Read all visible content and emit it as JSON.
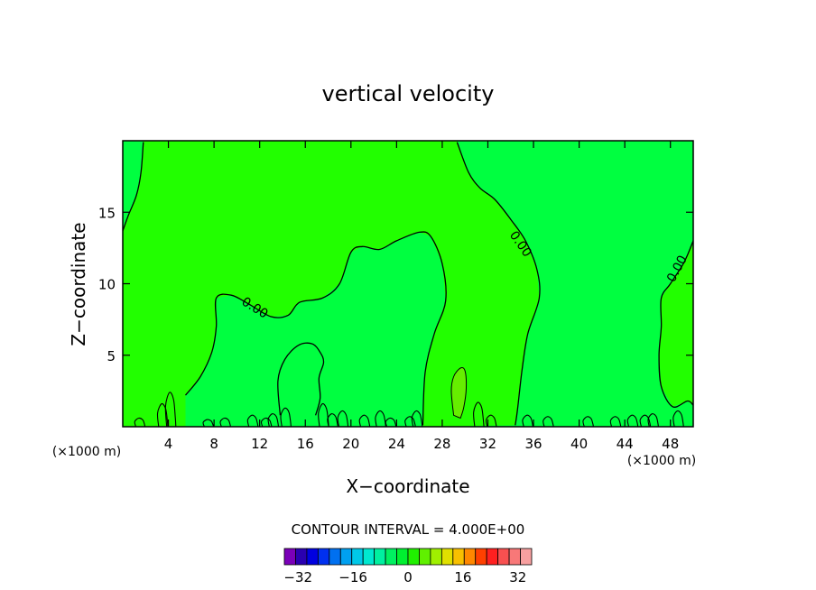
{
  "chart_data": {
    "type": "heatmap",
    "title": "vertical velocity",
    "xlabel": "X−coordinate",
    "ylabel": "Z−coordinate",
    "x_unit": "(×1000 m)",
    "y_unit": "(×1000 m)",
    "xlim": [
      0,
      50
    ],
    "ylim": [
      0,
      20
    ],
    "x_ticks": [
      4,
      8,
      12,
      16,
      20,
      24,
      28,
      32,
      36,
      40,
      44,
      48
    ],
    "y_ticks": [
      5,
      10,
      15
    ],
    "x_tick_labels": [
      "4",
      "8",
      "12",
      "16",
      "20",
      "24",
      "28",
      "32",
      "36",
      "40",
      "44",
      "48"
    ],
    "y_tick_labels": [
      "5",
      "10",
      "15"
    ],
    "contour_interval_text": "CONTOUR INTERVAL = 4.000E+00",
    "contour_label": "0.00",
    "colorbar": {
      "min": -36,
      "max": 36,
      "step": 4,
      "tick_values": [
        -32,
        -16,
        0,
        16,
        32
      ],
      "tick_labels": [
        "−32",
        "−16",
        "0",
        "16",
        "32"
      ],
      "colors": [
        "#7a00b8",
        "#2a00b0",
        "#0000e0",
        "#0030f0",
        "#0070f0",
        "#00a0f0",
        "#00c8e8",
        "#00e8d0",
        "#00f0a0",
        "#00f060",
        "#00f030",
        "#20f000",
        "#60f000",
        "#a0f000",
        "#e0e000",
        "#f8c000",
        "#ff8800",
        "#ff4000",
        "#ff2020",
        "#f85050",
        "#f87878",
        "#f8a0a0"
      ]
    },
    "regions": {
      "negative_fill": "#00ff40",
      "positive_fill": "#22ff00",
      "maximum_fill": "#66ee00"
    },
    "contours": {
      "zero_line_1": [
        [
          0,
          13.7
        ],
        [
          0.5,
          14.8
        ],
        [
          1.2,
          16.2
        ],
        [
          1.6,
          17.8
        ],
        [
          1.8,
          19.9
        ]
      ],
      "zero_line_2": [
        [
          5.5,
          2.2
        ],
        [
          6.8,
          3.5
        ],
        [
          7.8,
          5.2
        ],
        [
          8.2,
          7.0
        ],
        [
          8.2,
          9.0
        ],
        [
          9.5,
          9.2
        ],
        [
          11,
          8.6
        ],
        [
          13,
          7.7
        ],
        [
          14.5,
          7.8
        ],
        [
          15.5,
          8.7
        ],
        [
          17.5,
          9.0
        ],
        [
          19,
          10.0
        ],
        [
          20,
          12.2
        ],
        [
          21,
          12.6
        ],
        [
          22.5,
          12.4
        ],
        [
          24,
          13.0
        ],
        [
          26,
          13.6
        ],
        [
          27,
          13.3
        ],
        [
          28,
          11.4
        ],
        [
          28.3,
          8.8
        ],
        [
          27.3,
          6.5
        ],
        [
          26.5,
          3.8
        ],
        [
          26.3,
          0.1
        ]
      ],
      "zero_line_3": [
        [
          29.3,
          19.9
        ],
        [
          30.3,
          17.8
        ],
        [
          31.3,
          16.7
        ],
        [
          32.6,
          15.9
        ],
        [
          34,
          14.5
        ],
        [
          35.3,
          13.0
        ],
        [
          36.3,
          11.0
        ],
        [
          36.5,
          9.0
        ],
        [
          35.5,
          6.5
        ],
        [
          35,
          4.0
        ],
        [
          34.6,
          1.2
        ],
        [
          34.4,
          0.1
        ]
      ],
      "zero_line_4": [
        [
          50,
          13.0
        ],
        [
          49.2,
          11.5
        ],
        [
          48,
          10.0
        ],
        [
          47.2,
          9.0
        ],
        [
          47.2,
          7.0
        ],
        [
          47.0,
          5.0
        ],
        [
          47.2,
          2.8
        ],
        [
          48.2,
          1.4
        ],
        [
          49.5,
          1.8
        ],
        [
          50,
          1.5
        ]
      ],
      "bump_16": [
        [
          13.8,
          0.8
        ],
        [
          13.6,
          3.2
        ],
        [
          14.2,
          4.7
        ],
        [
          15.4,
          5.7
        ],
        [
          16.6,
          5.8
        ],
        [
          17.3,
          5.2
        ],
        [
          17.6,
          4.5
        ],
        [
          17.2,
          3.4
        ],
        [
          17.3,
          2.0
        ],
        [
          16.9,
          0.8
        ]
      ],
      "max_cell_29": [
        [
          29.0,
          0.8
        ],
        [
          28.8,
          2.5
        ],
        [
          29.0,
          3.5
        ],
        [
          29.6,
          4.1
        ],
        [
          30.0,
          3.9
        ],
        [
          30.1,
          2.7
        ],
        [
          29.9,
          1.4
        ],
        [
          29.6,
          0.6
        ]
      ]
    }
  }
}
